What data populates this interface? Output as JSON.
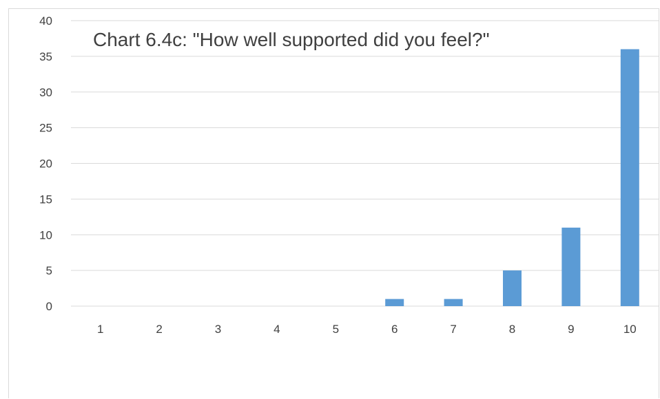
{
  "chart_data": {
    "type": "bar",
    "title": "Chart 6.4c: \"How well supported did you feel?\"",
    "categories": [
      "1",
      "2",
      "3",
      "4",
      "5",
      "6",
      "7",
      "8",
      "9",
      "10"
    ],
    "values": [
      0,
      0,
      0,
      0,
      0,
      1,
      1,
      5,
      11,
      36
    ],
    "ylim": [
      0,
      40
    ],
    "yticks": [
      0,
      5,
      10,
      15,
      20,
      25,
      30,
      35,
      40
    ],
    "grid": true,
    "bar_color": "#5b9bd5",
    "grid_color": "#d9d9d9",
    "text_color": "#404040"
  }
}
